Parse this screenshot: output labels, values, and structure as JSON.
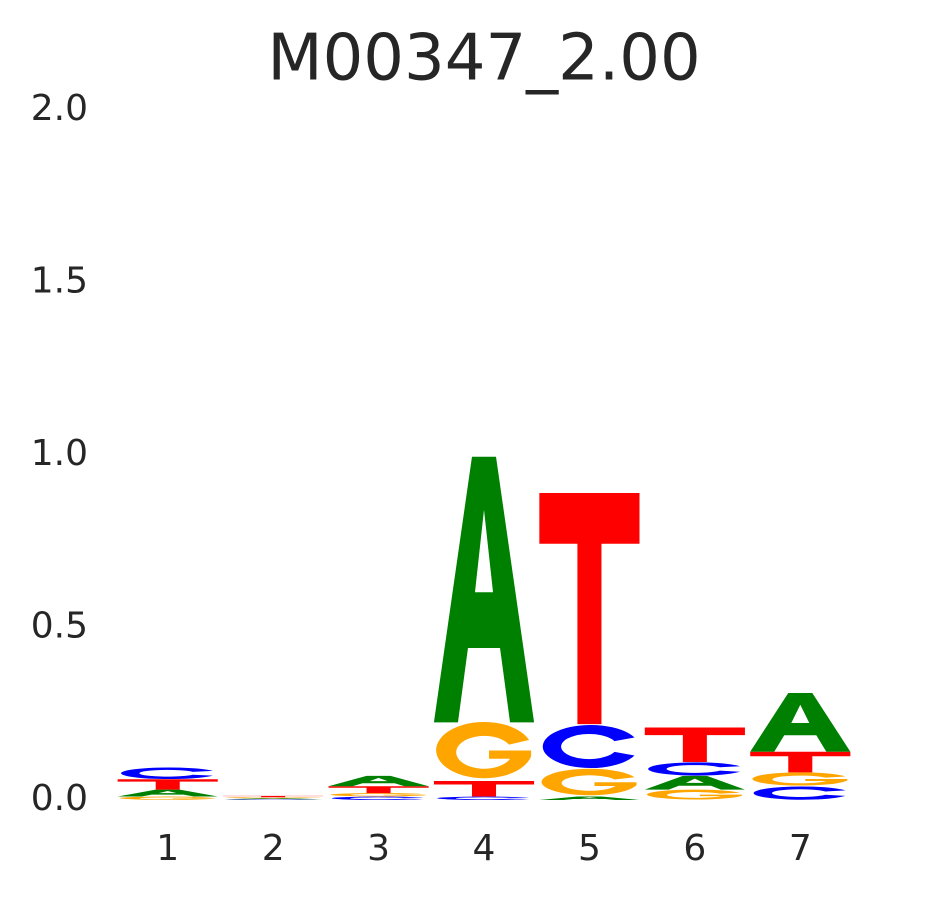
{
  "chart_data": {
    "type": "logo",
    "title": "M00347_2.00",
    "categories": [
      "1",
      "2",
      "3",
      "4",
      "5",
      "6",
      "7"
    ],
    "series": [
      {
        "name": "A",
        "color": "#008000",
        "values": [
          0.02,
          0.003,
          0.03,
          0.77,
          0.01,
          0.04,
          0.17
        ]
      },
      {
        "name": "C",
        "color": "#0000ff",
        "values": [
          0.035,
          0.002,
          0.01,
          0.01,
          0.13,
          0.04,
          0.04
        ]
      },
      {
        "name": "G",
        "color": "#ffa500",
        "values": [
          0.01,
          0.003,
          0.01,
          0.17,
          0.08,
          0.03,
          0.04
        ]
      },
      {
        "name": "T",
        "color": "#ff0000",
        "values": [
          0.03,
          0.004,
          0.02,
          0.045,
          0.67,
          0.1,
          0.06
        ]
      }
    ],
    "ylim": [
      0,
      2
    ],
    "yticks": [
      {
        "value": 0,
        "label": "0.0"
      },
      0.5,
      {
        "value": 1,
        "label": "1.0"
      },
      1.5,
      {
        "value": 2,
        "label": "2.0"
      }
    ],
    "grid": false
  }
}
